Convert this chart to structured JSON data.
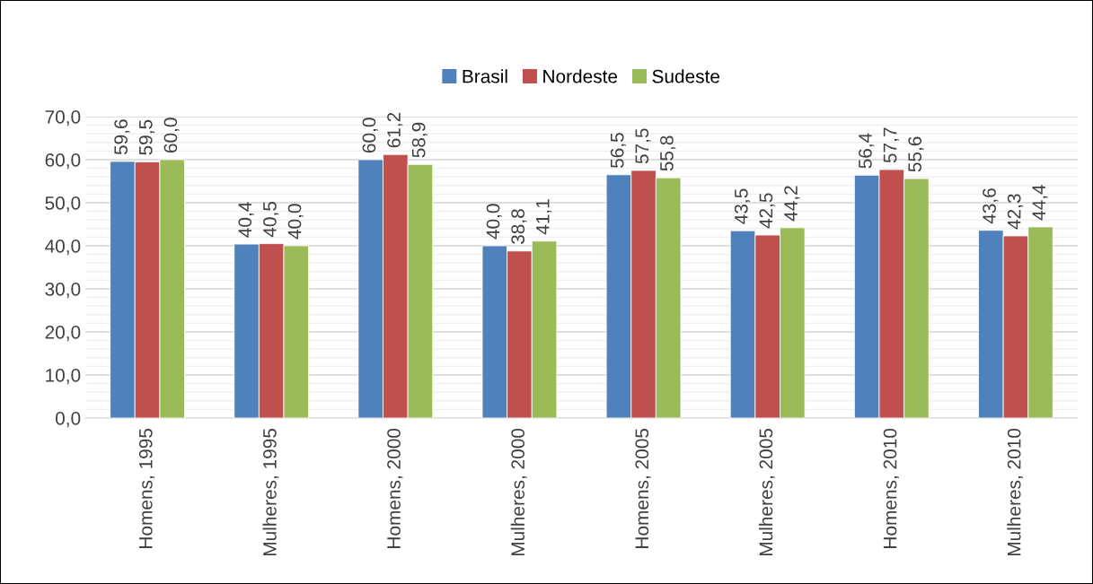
{
  "chart_data": {
    "type": "bar",
    "categories": [
      "Homens, 1995",
      "Mulheres, 1995",
      "Homens, 2000",
      "Mulheres, 2000",
      "Homens, 2005",
      "Mulheres, 2005",
      "Homens, 2010",
      "Mulheres, 2010"
    ],
    "series": [
      {
        "name": "Brasil",
        "color": "#4f81bd",
        "values": [
          59.6,
          40.4,
          60.0,
          40.0,
          56.5,
          43.5,
          56.4,
          43.6
        ],
        "value_labels": [
          "59,6",
          "40,4",
          "60,0",
          "40,0",
          "56,5",
          "43,5",
          "56,4",
          "43,6"
        ]
      },
      {
        "name": "Nordeste",
        "color": "#c0504d",
        "values": [
          59.5,
          40.5,
          61.2,
          38.8,
          57.5,
          42.5,
          57.7,
          42.3
        ],
        "value_labels": [
          "59,5",
          "40,5",
          "61,2",
          "38,8",
          "57,5",
          "42,5",
          "57,7",
          "42,3"
        ]
      },
      {
        "name": "Sudeste",
        "color": "#9bbb59",
        "values": [
          60.0,
          40.0,
          58.9,
          41.1,
          55.8,
          44.2,
          55.6,
          44.4
        ],
        "value_labels": [
          "60,0",
          "40,0",
          "58,9",
          "41,1",
          "55,8",
          "44,2",
          "55,6",
          "44,4"
        ]
      }
    ],
    "ylim": [
      0,
      70
    ],
    "yticks": [
      {
        "value": 0,
        "label": "0,0"
      },
      {
        "value": 10,
        "label": "10,0"
      },
      {
        "value": 20,
        "label": "20,0"
      },
      {
        "value": 30,
        "label": "30,0"
      },
      {
        "value": 40,
        "label": "40,0"
      },
      {
        "value": 50,
        "label": "50,0"
      },
      {
        "value": 60,
        "label": "60,0"
      },
      {
        "value": 70,
        "label": "70,0"
      }
    ],
    "grid": "y",
    "legend": "top"
  }
}
